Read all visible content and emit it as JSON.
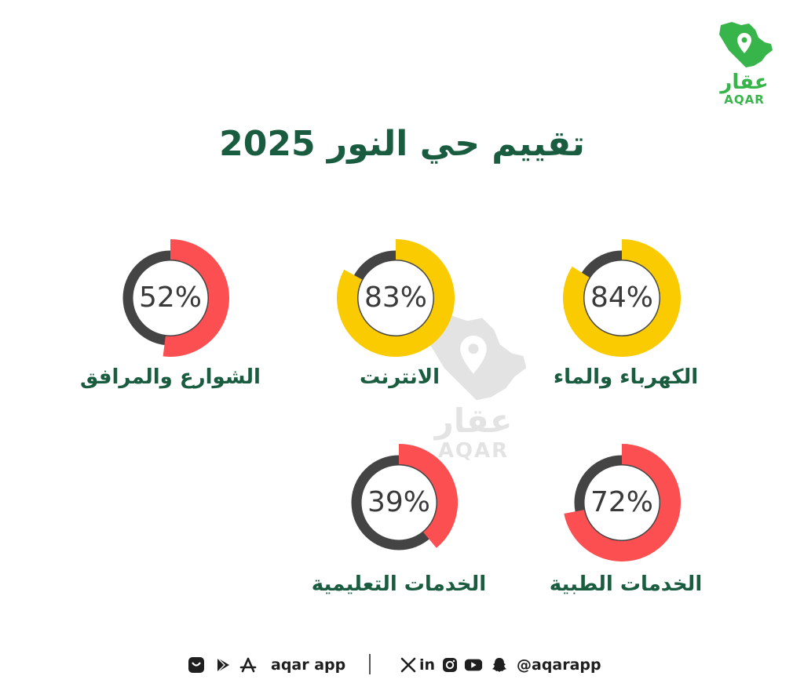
{
  "logo": {
    "arabic": "عقار",
    "english": "AQAR",
    "color": "#38b54a",
    "icon": "saudi-map-pin-icon"
  },
  "watermark": {
    "arabic": "عقار",
    "english": "AQAR"
  },
  "title": "تقييم حي النور 2025",
  "colors": {
    "title": "#1a5c3f",
    "track": "#444444",
    "high": "#f9cb00",
    "low": "#fb4f52"
  },
  "chart_data": {
    "type": "donut",
    "categories": [
      "الكهرباء والماء",
      "الانترنت",
      "الشوارع والمرافق",
      "الخدمات الطبية",
      "الخدمات التعليمية"
    ],
    "values": [
      84,
      83,
      52,
      72,
      39
    ],
    "value_labels": [
      "84%",
      "83%",
      "52%",
      "72%",
      "39%"
    ],
    "colors": [
      "#f9cb00",
      "#f9cb00",
      "#fb4f52",
      "#fb4f52",
      "#fb4f52"
    ],
    "ylim": [
      0,
      100
    ]
  },
  "footer": {
    "app_text": "aqar app",
    "handle": "@aqarapp",
    "separator": "|",
    "linkedin": "in",
    "icons": [
      "store-icon",
      "google-play-icon",
      "app-store-icon",
      "x-icon",
      "linkedin-icon",
      "instagram-icon",
      "youtube-icon",
      "snapchat-icon"
    ]
  }
}
